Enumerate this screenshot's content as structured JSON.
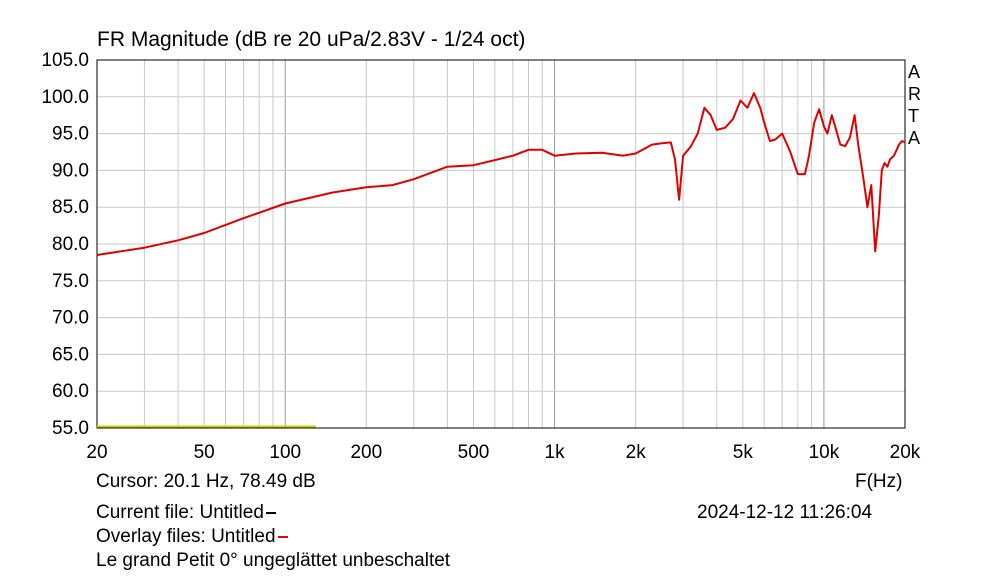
{
  "chart_data": {
    "type": "line",
    "title": "FR Magnitude (dB re 20 uPa/2.83V - 1/24 oct)",
    "xlabel": "F(Hz)",
    "xscale": "log",
    "xlim": [
      20,
      20000
    ],
    "ylim": [
      55,
      105
    ],
    "x_ticks": [
      20,
      50,
      100,
      200,
      500,
      1000,
      2000,
      5000,
      10000,
      20000
    ],
    "x_tick_labels": [
      "20",
      "50",
      "100",
      "200",
      "500",
      "1k",
      "2k",
      "5k",
      "10k",
      "20k"
    ],
    "y_ticks": [
      55,
      60,
      65,
      70,
      75,
      80,
      85,
      90,
      95,
      100,
      105
    ],
    "y_tick_labels": [
      "55.0",
      "60.0",
      "65.0",
      "70.0",
      "75.0",
      "80.0",
      "85.0",
      "90.0",
      "95.0",
      "100.0",
      "105.0"
    ],
    "grid": true,
    "watermark": "ARTA",
    "series": [
      {
        "color": "#e00000",
        "x": [
          20,
          30,
          40,
          50,
          70,
          100,
          150,
          200,
          250,
          300,
          400,
          500,
          600,
          700,
          800,
          900,
          1000,
          1200,
          1500,
          1800,
          2000,
          2300,
          2500,
          2700,
          2800,
          2900,
          3000,
          3200,
          3400,
          3600,
          3800,
          4000,
          4300,
          4600,
          4900,
          5200,
          5500,
          5800,
          6000,
          6300,
          6600,
          7000,
          7500,
          8000,
          8500,
          8800,
          9200,
          9600,
          10000,
          10300,
          10700,
          11000,
          11500,
          12000,
          12500,
          13000,
          13400,
          14000,
          14500,
          15000,
          15500,
          16000,
          16400,
          16800,
          17200,
          17600,
          18200,
          19000,
          19500,
          20000
        ],
        "y": [
          78.5,
          79.5,
          80.5,
          81.5,
          83.5,
          85.5,
          87.0,
          87.7,
          88.0,
          88.8,
          90.5,
          90.7,
          91.4,
          92.0,
          92.8,
          92.8,
          92.0,
          92.3,
          92.4,
          92.0,
          92.3,
          93.5,
          93.7,
          93.8,
          91.5,
          86.0,
          92.0,
          93.2,
          95.0,
          98.5,
          97.5,
          95.5,
          95.8,
          97.0,
          99.5,
          98.5,
          100.5,
          98.5,
          96.5,
          94.0,
          94.2,
          95.0,
          92.5,
          89.5,
          89.5,
          92.0,
          96.5,
          98.3,
          96.0,
          95.0,
          97.5,
          96.0,
          93.5,
          93.3,
          94.5,
          97.5,
          93.5,
          89.0,
          85.0,
          88.0,
          79.0,
          84.0,
          90.0,
          91.0,
          90.5,
          91.5,
          92.0,
          93.5,
          94.0,
          93.8
        ]
      },
      {
        "color": "#c8d400",
        "x": [
          20,
          130
        ],
        "y": [
          55.2,
          55.2
        ]
      }
    ]
  },
  "texts": {
    "cursor": "Cursor: 20.1 Hz, 78.49 dB",
    "current_file": "Current file: Untitled",
    "overlay_files": "Overlay files: Untitled",
    "datetime": "2024-12-12  11:26:04",
    "description": "Le grand Petit 0° ungeglättet unbeschaltet",
    "xlabel": "F(Hz)",
    "arta": [
      "A",
      "R",
      "T",
      "A"
    ]
  },
  "colors": {
    "current_marker": "#000000",
    "overlay_marker": "#e00000"
  }
}
